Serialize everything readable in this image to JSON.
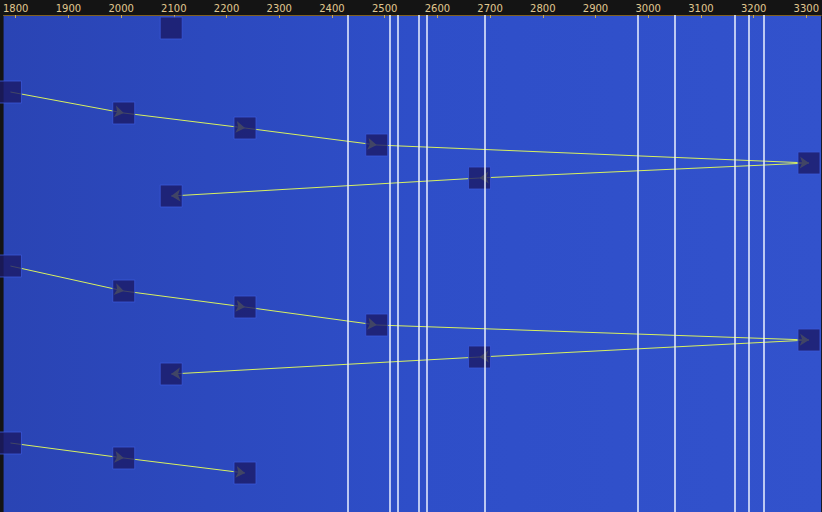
{
  "chart_data": {
    "type": "scatter",
    "xlim": [
      1777,
      3328
    ],
    "xticks": [
      1800,
      1900,
      2000,
      2100,
      2200,
      2300,
      2400,
      2500,
      2600,
      2700,
      2800,
      2900,
      3000,
      3100,
      3200,
      3300
    ],
    "ylim": [
      0,
      497
    ],
    "tick_labels": "x",
    "grid": false,
    "marker": "square",
    "color": "#d8f060",
    "signals": [
      2430,
      2510,
      2525,
      2565,
      2580,
      2690,
      2980,
      3050,
      3165,
      3190,
      3220
    ],
    "cycles": [
      {
        "x": [
          2095
        ],
        "y": [
          13
        ]
      },
      {
        "x": [
          1790,
          2005,
          2235,
          2485,
          3305,
          2680,
          2095
        ],
        "y": [
          77,
          98,
          113,
          130,
          148,
          163,
          181
        ]
      },
      {
        "x": [
          1790,
          2005,
          2235,
          2485,
          3305,
          2680,
          2095
        ],
        "y": [
          251,
          276,
          292,
          310,
          325,
          342,
          359
        ]
      },
      {
        "x": [
          1790,
          2005,
          2235
        ],
        "y": [
          428,
          443,
          458
        ]
      }
    ]
  }
}
